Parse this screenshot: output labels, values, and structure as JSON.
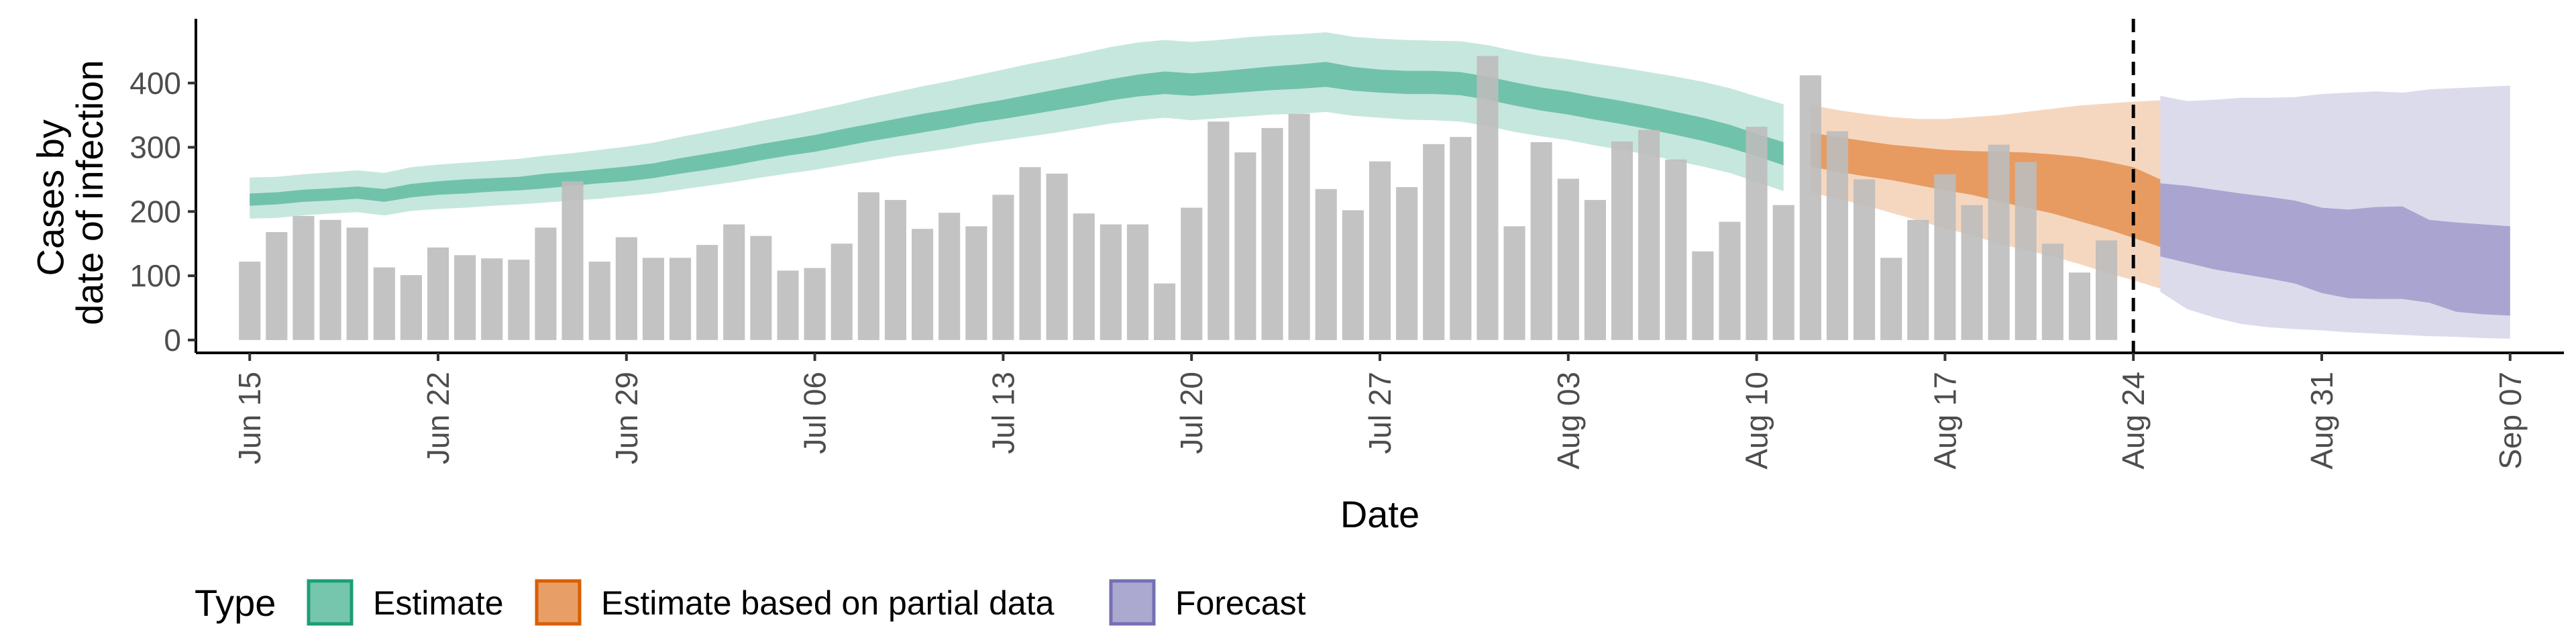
{
  "chart_data": {
    "type": "bar",
    "title": "",
    "xlabel": "Date",
    "ylabel_lines": [
      "Cases by",
      "date of infection"
    ],
    "ylim": [
      -20,
      500
    ],
    "y_ticks": [
      0,
      100,
      200,
      300,
      400
    ],
    "x_start": "2020-06-15",
    "x_range": [
      -2,
      86
    ],
    "x_ticks": [
      {
        "day": 0,
        "label": "Jun 15"
      },
      {
        "day": 7,
        "label": "Jun 22"
      },
      {
        "day": 14,
        "label": "Jun 29"
      },
      {
        "day": 21,
        "label": "Jul 06"
      },
      {
        "day": 28,
        "label": "Jul 13"
      },
      {
        "day": 35,
        "label": "Jul 20"
      },
      {
        "day": 42,
        "label": "Jul 27"
      },
      {
        "day": 49,
        "label": "Aug 03"
      },
      {
        "day": 56,
        "label": "Aug 10"
      },
      {
        "day": 63,
        "label": "Aug 17"
      },
      {
        "day": 70,
        "label": "Aug 24"
      },
      {
        "day": 77,
        "label": "Aug 31"
      },
      {
        "day": 84,
        "label": "Sep 07"
      }
    ],
    "vline_day": 70,
    "cases": [
      122,
      168,
      193,
      187,
      175,
      113,
      101,
      144,
      132,
      127,
      125,
      175,
      247,
      122,
      160,
      128,
      128,
      148,
      180,
      162,
      108,
      112,
      150,
      230,
      218,
      173,
      198,
      177,
      226,
      269,
      259,
      197,
      180,
      180,
      88,
      206,
      340,
      292,
      330,
      352,
      235,
      202,
      278,
      238,
      305,
      316,
      442,
      177,
      308,
      251,
      218,
      309,
      327,
      281,
      138,
      184,
      332,
      210,
      412,
      325,
      250,
      128,
      187,
      258,
      210,
      304,
      277,
      150,
      105,
      155
    ],
    "bar_color": "#bdbdbd",
    "series": [
      {
        "name": "Estimate",
        "color": "#1b9e77",
        "day_start": 0,
        "median": [
          218,
          220,
          224,
          226,
          229,
          225,
          233,
          236,
          239,
          241,
          243,
          247,
          250,
          254,
          258,
          263,
          270,
          277,
          284,
          292,
          299,
          306,
          314,
          322,
          330,
          337,
          344,
          352,
          359,
          366,
          374,
          382,
          389,
          396,
          401,
          397,
          401,
          404,
          408,
          410,
          414,
          406,
          403,
          401,
          401,
          399,
          392,
          383,
          375,
          369,
          361,
          354,
          346,
          337,
          328,
          317,
          303,
          290
        ],
        "lower50": [
          209,
          211,
          215,
          217,
          220,
          215,
          222,
          226,
          228,
          231,
          233,
          236,
          240,
          244,
          247,
          252,
          259,
          265,
          272,
          280,
          287,
          293,
          301,
          309,
          316,
          323,
          330,
          338,
          344,
          351,
          358,
          365,
          373,
          379,
          383,
          380,
          383,
          386,
          389,
          391,
          394,
          388,
          385,
          383,
          383,
          381,
          374,
          365,
          357,
          351,
          343,
          336,
          328,
          319,
          310,
          299,
          286,
          272
        ],
        "upper50": [
          228,
          230,
          234,
          236,
          239,
          235,
          243,
          247,
          250,
          252,
          254,
          259,
          262,
          266,
          270,
          275,
          283,
          290,
          297,
          305,
          312,
          319,
          328,
          336,
          344,
          352,
          359,
          367,
          374,
          382,
          390,
          398,
          406,
          413,
          418,
          415,
          418,
          422,
          426,
          429,
          433,
          425,
          421,
          419,
          419,
          417,
          410,
          401,
          393,
          387,
          379,
          372,
          364,
          355,
          346,
          335,
          321,
          308
        ],
        "lower90": [
          189,
          190,
          194,
          197,
          199,
          194,
          201,
          204,
          206,
          209,
          211,
          214,
          217,
          220,
          224,
          228,
          234,
          240,
          246,
          253,
          259,
          265,
          272,
          279,
          286,
          292,
          298,
          305,
          311,
          317,
          323,
          330,
          337,
          342,
          346,
          342,
          345,
          348,
          351,
          352,
          355,
          349,
          346,
          343,
          342,
          340,
          333,
          324,
          317,
          311,
          303,
          296,
          288,
          279,
          270,
          260,
          246,
          232
        ],
        "upper90": [
          253,
          254,
          258,
          261,
          264,
          260,
          269,
          273,
          276,
          279,
          282,
          287,
          291,
          296,
          301,
          307,
          316,
          324,
          332,
          341,
          349,
          358,
          367,
          377,
          386,
          395,
          403,
          412,
          421,
          430,
          438,
          447,
          456,
          463,
          467,
          464,
          467,
          471,
          474,
          476,
          479,
          472,
          469,
          467,
          466,
          465,
          459,
          450,
          442,
          437,
          430,
          424,
          417,
          410,
          402,
          392,
          379,
          367
        ]
      },
      {
        "name": "Estimate based on partial data",
        "color": "#d95f02",
        "day_start": 58,
        "median": [
          297,
          290,
          283,
          276,
          271,
          265,
          260,
          256,
          251,
          245,
          238,
          230,
          220,
          200
        ],
        "lower50": [
          270,
          262,
          255,
          249,
          241,
          233,
          226,
          216,
          206,
          197,
          185,
          173,
          159,
          145
        ],
        "upper50": [
          323,
          316,
          310,
          304,
          300,
          296,
          294,
          293,
          292,
          289,
          285,
          278,
          269,
          250
        ],
        "lower90": [
          230,
          220,
          210,
          198,
          186,
          174,
          163,
          150,
          140,
          130,
          118,
          105,
          93,
          80
        ],
        "upper90": [
          366,
          358,
          352,
          347,
          344,
          344,
          347,
          350,
          355,
          360,
          365,
          368,
          371,
          373
        ]
      },
      {
        "name": "Forecast",
        "color": "#7570b3",
        "day_start": 71,
        "median": [
          187,
          184,
          178,
          173,
          166,
          158,
          152,
          140,
          136,
          138,
          140,
          122,
          115,
          108
        ],
        "lower50": [
          130,
          120,
          110,
          103,
          96,
          88,
          73,
          65,
          64,
          64,
          58,
          44,
          40,
          38
        ],
        "upper50": [
          244,
          240,
          234,
          228,
          223,
          217,
          206,
          203,
          207,
          208,
          187,
          183,
          180,
          177
        ],
        "lower90": [
          75,
          48,
          35,
          25,
          20,
          17,
          15,
          12,
          10,
          8,
          6,
          5,
          3,
          2
        ],
        "upper90": [
          380,
          372,
          374,
          377,
          377,
          378,
          383,
          385,
          387,
          385,
          390,
          392,
          394,
          396
        ]
      }
    ],
    "legend": {
      "title": "Type",
      "position": "bottom",
      "items": [
        {
          "label": "Estimate",
          "color": "#1b9e77"
        },
        {
          "label": "Estimate based on partial data",
          "color": "#d95f02"
        },
        {
          "label": "Forecast",
          "color": "#7570b3"
        }
      ]
    },
    "grid": false
  }
}
